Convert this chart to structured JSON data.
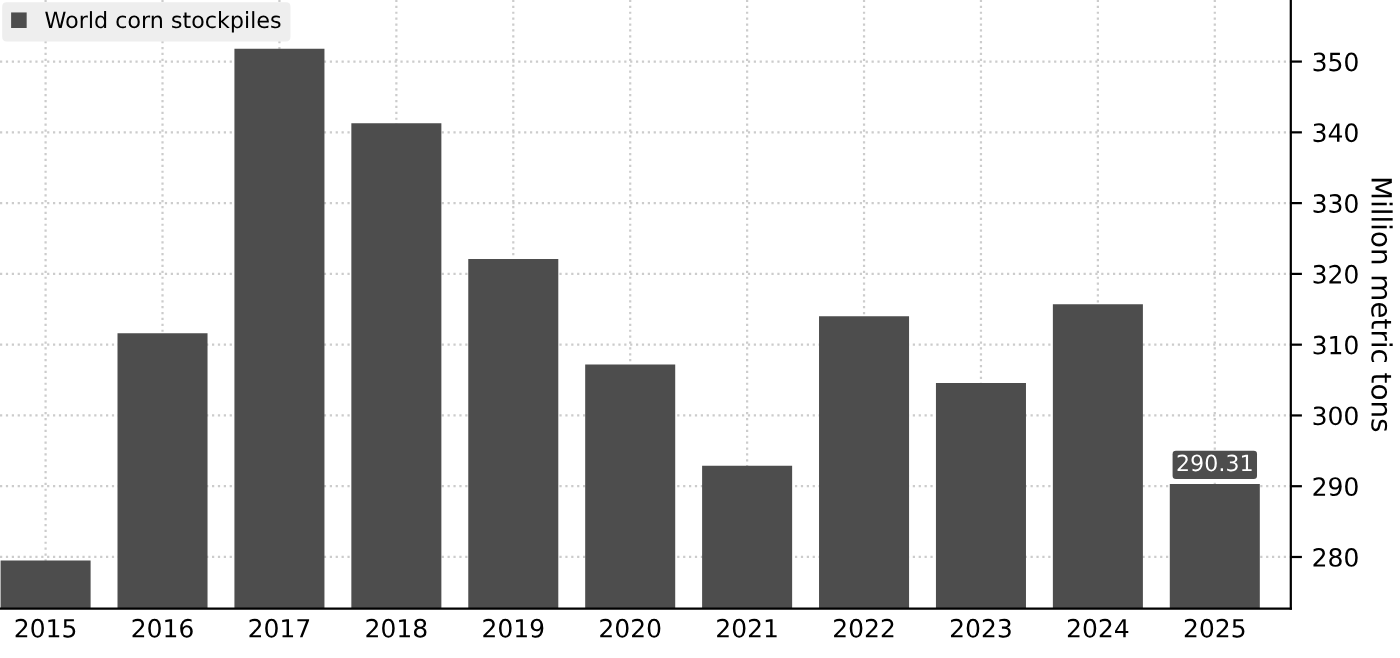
{
  "chart_data": {
    "type": "bar",
    "ylabel": "Million metric tons",
    "categories": [
      "2015",
      "2016",
      "2017",
      "2018",
      "2019",
      "2020",
      "2021",
      "2022",
      "2023",
      "2024",
      "2025"
    ],
    "series": [
      {
        "name": "World corn stockpiles",
        "color": "#4d4d4d",
        "values": [
          279.5,
          311.6,
          351.8,
          341.3,
          322.1,
          307.2,
          292.9,
          314.0,
          304.6,
          315.7,
          290.31
        ],
        "value_labels": [
          null,
          null,
          null,
          null,
          null,
          null,
          null,
          null,
          null,
          null,
          "290.31"
        ]
      }
    ],
    "ylim": [
      272.7,
      358.7
    ],
    "yticks": [
      280,
      290,
      300,
      310,
      320,
      330,
      340,
      350
    ],
    "grid": true,
    "legend": "top left"
  }
}
